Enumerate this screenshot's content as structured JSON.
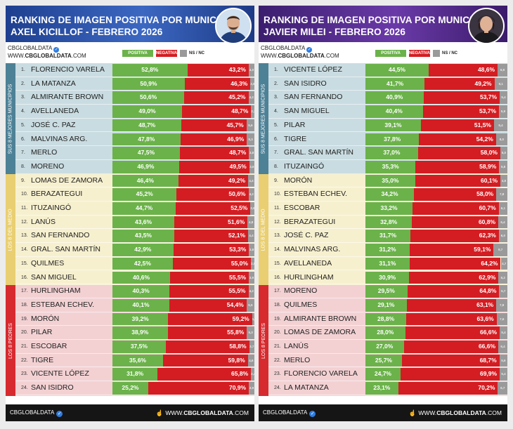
{
  "brand": {
    "name": "CBGLOBALDATA",
    "www_prefix": "WWW.",
    "domain_bold": "CBGLOBALDATA",
    "domain_tail": ".COM",
    "footer_prefix": "WWW.",
    "footer_bold": "CBGLOBALDATA",
    "footer_tail": ".COM"
  },
  "legend": {
    "positive": "POSITIVA",
    "negative": "NEGATIVA",
    "ns": "NS / NC"
  },
  "groups": [
    {
      "label": "SUS 8 MEJORES MUNICIPIOS"
    },
    {
      "label": "LOS 8 DEL MEDIO"
    },
    {
      "label": "LOS 8 PEORES"
    }
  ],
  "colors": {
    "positive": "#6bb24a",
    "negative": "#d31d22",
    "ns": "#9a9a9a",
    "header_left": "#2c56ad",
    "header_right": "#55308f",
    "group_best": "#c9dce1",
    "group_middle": "#f7f0cf",
    "group_worst": "#f3d1d3"
  },
  "chart_data": [
    {
      "type": "bar",
      "orientation": "horizontal-stacked",
      "title_line1": "RANKING DE IMAGEN POSITIVA POR MUNICIPIO",
      "title_line2": "AXEL KICILLOF - FEBRERO 2026",
      "rows": [
        {
          "rank": "1.",
          "name": "FLORENCIO VARELA",
          "pos": 52.8,
          "neg": 43.2,
          "ns": 4.0,
          "pos_label": "52,8%",
          "neg_label": "43,2%",
          "ns_label": "4,0"
        },
        {
          "rank": "2.",
          "name": "LA MATANZA",
          "pos": 50.9,
          "neg": 46.3,
          "ns": 2.8,
          "pos_label": "50,9%",
          "neg_label": "46,3%",
          "ns_label": "2,8"
        },
        {
          "rank": "3.",
          "name": "ALMIRANTE BROWN",
          "pos": 50.6,
          "neg": 45.2,
          "ns": 4.2,
          "pos_label": "50,6%",
          "neg_label": "45,2%",
          "ns_label": "4,2"
        },
        {
          "rank": "4.",
          "name": "AVELLANEDA",
          "pos": 49.0,
          "neg": 48.7,
          "ns": 2.3,
          "pos_label": "49,0%",
          "neg_label": "48,7%",
          "ns_label": "2,3"
        },
        {
          "rank": "5.",
          "name": "JOSÉ C. PAZ",
          "pos": 48.7,
          "neg": 45.7,
          "ns": 5.6,
          "pos_label": "48,7%",
          "neg_label": "45,7%",
          "ns_label": "5,6"
        },
        {
          "rank": "6.",
          "name": "MALVINAS ARG.",
          "pos": 47.8,
          "neg": 46.9,
          "ns": 5.3,
          "pos_label": "47,8%",
          "neg_label": "46,9%",
          "ns_label": "5,3"
        },
        {
          "rank": "7.",
          "name": "MERLO",
          "pos": 47.5,
          "neg": 48.7,
          "ns": 3.8,
          "pos_label": "47,5%",
          "neg_label": "48,7%",
          "ns_label": "3,8"
        },
        {
          "rank": "8.",
          "name": "MORENO",
          "pos": 46.9,
          "neg": 49.5,
          "ns": 3.6,
          "pos_label": "46,9%",
          "neg_label": "49,5%",
          "ns_label": "3,6"
        },
        {
          "rank": "9.",
          "name": "LOMAS DE ZAMORA",
          "pos": 46.4,
          "neg": 49.2,
          "ns": 4.4,
          "pos_label": "46,4%",
          "neg_label": "49,2%",
          "ns_label": "4,4"
        },
        {
          "rank": "10.",
          "name": "BERAZATEGUI",
          "pos": 45.2,
          "neg": 50.6,
          "ns": 4.2,
          "pos_label": "45,2%",
          "neg_label": "50,6%",
          "ns_label": "4,2"
        },
        {
          "rank": "11.",
          "name": "ITUZAINGÓ",
          "pos": 44.7,
          "neg": 52.5,
          "ns": 2.8,
          "pos_label": "44,7%",
          "neg_label": "52,5%",
          "ns_label": "2,8"
        },
        {
          "rank": "12.",
          "name": "LANÚS",
          "pos": 43.6,
          "neg": 51.6,
          "ns": 4.8,
          "pos_label": "43,6%",
          "neg_label": "51,6%",
          "ns_label": "4,8"
        },
        {
          "rank": "13.",
          "name": "SAN FERNANDO",
          "pos": 43.5,
          "neg": 52.1,
          "ns": 4.4,
          "pos_label": "43,5%",
          "neg_label": "52,1%",
          "ns_label": "4,4"
        },
        {
          "rank": "14.",
          "name": "GRAL. SAN MARTÍN",
          "pos": 42.9,
          "neg": 53.3,
          "ns": 3.8,
          "pos_label": "42,9%",
          "neg_label": "53,3%",
          "ns_label": "3,8"
        },
        {
          "rank": "15.",
          "name": "QUILMES",
          "pos": 42.5,
          "neg": 55.0,
          "ns": 2.5,
          "pos_label": "42,5%",
          "neg_label": "55,0%",
          "ns_label": "2,5"
        },
        {
          "rank": "16.",
          "name": "SAN MIGUEL",
          "pos": 40.6,
          "neg": 55.5,
          "ns": 3.9,
          "pos_label": "40,6%",
          "neg_label": "55,5%",
          "ns_label": "3,9"
        },
        {
          "rank": "17.",
          "name": "HURLINGHAM",
          "pos": 40.3,
          "neg": 55.5,
          "ns": 4.2,
          "pos_label": "40,3%",
          "neg_label": "55,5%",
          "ns_label": "4,2"
        },
        {
          "rank": "18.",
          "name": "ESTEBAN ECHEV.",
          "pos": 40.1,
          "neg": 54.4,
          "ns": 5.5,
          "pos_label": "40,1%",
          "neg_label": "54,4%",
          "ns_label": "5,5"
        },
        {
          "rank": "19.",
          "name": "MORÓN",
          "pos": 39.2,
          "neg": 59.2,
          "ns": 1.6,
          "pos_label": "39,2%",
          "neg_label": "59,2%",
          "ns_label": "1,6"
        },
        {
          "rank": "20.",
          "name": "PILAR",
          "pos": 38.9,
          "neg": 55.8,
          "ns": 5.3,
          "pos_label": "38,9%",
          "neg_label": "55,8%",
          "ns_label": "5,3"
        },
        {
          "rank": "21.",
          "name": "ESCOBAR",
          "pos": 37.5,
          "neg": 58.8,
          "ns": 3.7,
          "pos_label": "37,5%",
          "neg_label": "58,8%",
          "ns_label": "3,7"
        },
        {
          "rank": "22.",
          "name": "TIGRE",
          "pos": 35.6,
          "neg": 59.8,
          "ns": 4.6,
          "pos_label": "35,6%",
          "neg_label": "59,8%",
          "ns_label": "4,6"
        },
        {
          "rank": "23.",
          "name": "VICENTE LÓPEZ",
          "pos": 31.8,
          "neg": 65.8,
          "ns": 2.4,
          "pos_label": "31,8%",
          "neg_label": "65,8%",
          "ns_label": "2,4"
        },
        {
          "rank": "24.",
          "name": "SAN ISIDRO",
          "pos": 25.2,
          "neg": 70.9,
          "ns": 3.9,
          "pos_label": "25,2%",
          "neg_label": "70,9%",
          "ns_label": "3,9"
        }
      ]
    },
    {
      "type": "bar",
      "orientation": "horizontal-stacked",
      "title_line1": "RANKING DE IMAGEN POSITIVA POR MUNICIPIO",
      "title_line2": "JAVIER MILEI - FEBRERO 2026",
      "rows": [
        {
          "rank": "1.",
          "name": "VICENTE LÓPEZ",
          "pos": 44.5,
          "neg": 48.6,
          "ns": 6.9,
          "pos_label": "44,5%",
          "neg_label": "48,6%",
          "ns_label": "6,9"
        },
        {
          "rank": "2.",
          "name": "SAN ISIDRO",
          "pos": 41.7,
          "neg": 49.2,
          "ns": 9.1,
          "pos_label": "41,7%",
          "neg_label": "49,2%",
          "ns_label": "9,1"
        },
        {
          "rank": "3.",
          "name": "SAN FERNANDO",
          "pos": 40.9,
          "neg": 53.7,
          "ns": 5.4,
          "pos_label": "40,9%",
          "neg_label": "53,7%",
          "ns_label": "5,4"
        },
        {
          "rank": "4.",
          "name": "SAN MIGUEL",
          "pos": 40.4,
          "neg": 53.7,
          "ns": 5.9,
          "pos_label": "40,4%",
          "neg_label": "53,7%",
          "ns_label": "5,9"
        },
        {
          "rank": "5.",
          "name": "PILAR",
          "pos": 39.1,
          "neg": 51.5,
          "ns": 9.4,
          "pos_label": "39,1%",
          "neg_label": "51,5%",
          "ns_label": "9,4"
        },
        {
          "rank": "6.",
          "name": "TIGRE",
          "pos": 37.8,
          "neg": 54.2,
          "ns": 8.0,
          "pos_label": "37,8%",
          "neg_label": "54,2%",
          "ns_label": "8,0"
        },
        {
          "rank": "7.",
          "name": "GRAL. SAN MARTÍN",
          "pos": 37.0,
          "neg": 58.0,
          "ns": 5.0,
          "pos_label": "37,0%",
          "neg_label": "58,0%",
          "ns_label": "5,0"
        },
        {
          "rank": "8.",
          "name": "ITUZAINGÓ",
          "pos": 35.3,
          "neg": 58.9,
          "ns": 5.8,
          "pos_label": "35,3%",
          "neg_label": "58,9%",
          "ns_label": "5,8"
        },
        {
          "rank": "9.",
          "name": "MORÓN",
          "pos": 35.0,
          "neg": 60.1,
          "ns": 4.9,
          "pos_label": "35,0%",
          "neg_label": "60,1%",
          "ns_label": "4,9"
        },
        {
          "rank": "10.",
          "name": "ESTEBAN ECHEV.",
          "pos": 34.2,
          "neg": 58.0,
          "ns": 7.8,
          "pos_label": "34,2%",
          "neg_label": "58,0%",
          "ns_label": "7,8"
        },
        {
          "rank": "11.",
          "name": "ESCOBAR",
          "pos": 33.2,
          "neg": 60.7,
          "ns": 6.1,
          "pos_label": "33,2%",
          "neg_label": "60,7%",
          "ns_label": "6,1"
        },
        {
          "rank": "12.",
          "name": "BERAZATEGUI",
          "pos": 32.8,
          "neg": 60.8,
          "ns": 6.4,
          "pos_label": "32,8%",
          "neg_label": "60,8%",
          "ns_label": "6,4"
        },
        {
          "rank": "13.",
          "name": "JOSÉ C. PAZ",
          "pos": 31.7,
          "neg": 62.3,
          "ns": 6.0,
          "pos_label": "31,7%",
          "neg_label": "62,3%",
          "ns_label": "6,0"
        },
        {
          "rank": "14.",
          "name": "MALVINAS ARG.",
          "pos": 31.2,
          "neg": 59.1,
          "ns": 9.7,
          "pos_label": "31,2%",
          "neg_label": "59,1%",
          "ns_label": "9,7"
        },
        {
          "rank": "15.",
          "name": "AVELLANEDA",
          "pos": 31.1,
          "neg": 64.2,
          "ns": 4.7,
          "pos_label": "31,1%",
          "neg_label": "64,2%",
          "ns_label": "4,7"
        },
        {
          "rank": "16.",
          "name": "HURLINGHAM",
          "pos": 30.9,
          "neg": 62.9,
          "ns": 6.2,
          "pos_label": "30,9%",
          "neg_label": "62,9%",
          "ns_label": "6,2"
        },
        {
          "rank": "17.",
          "name": "MORENO",
          "pos": 29.5,
          "neg": 64.8,
          "ns": 5.7,
          "pos_label": "29,5%",
          "neg_label": "64,8%",
          "ns_label": "5,7"
        },
        {
          "rank": "18.",
          "name": "QUILMES",
          "pos": 29.1,
          "neg": 63.1,
          "ns": 7.8,
          "pos_label": "29,1%",
          "neg_label": "63,1%",
          "ns_label": "7,8"
        },
        {
          "rank": "19.",
          "name": "ALMIRANTE BROWN",
          "pos": 28.8,
          "neg": 63.6,
          "ns": 7.6,
          "pos_label": "28,8%",
          "neg_label": "63,6%",
          "ns_label": "7,6"
        },
        {
          "rank": "20.",
          "name": "LOMAS DE ZAMORA",
          "pos": 28.0,
          "neg": 66.6,
          "ns": 5.4,
          "pos_label": "28,0%",
          "neg_label": "66,6%",
          "ns_label": "5,4"
        },
        {
          "rank": "21.",
          "name": "LANÚS",
          "pos": 27.0,
          "neg": 66.6,
          "ns": 6.4,
          "pos_label": "27,0%",
          "neg_label": "66,6%",
          "ns_label": "6,4"
        },
        {
          "rank": "22.",
          "name": "MERLO",
          "pos": 25.7,
          "neg": 68.7,
          "ns": 5.6,
          "pos_label": "25,7%",
          "neg_label": "68,7%",
          "ns_label": "5,6"
        },
        {
          "rank": "23.",
          "name": "FLORENCIO VARELA",
          "pos": 24.7,
          "neg": 69.9,
          "ns": 5.4,
          "pos_label": "24,7%",
          "neg_label": "69,9%",
          "ns_label": "5,4"
        },
        {
          "rank": "24.",
          "name": "LA MATANZA",
          "pos": 23.1,
          "neg": 70.2,
          "ns": 6.7,
          "pos_label": "23,1%",
          "neg_label": "70,2%",
          "ns_label": "6,7"
        }
      ]
    }
  ]
}
